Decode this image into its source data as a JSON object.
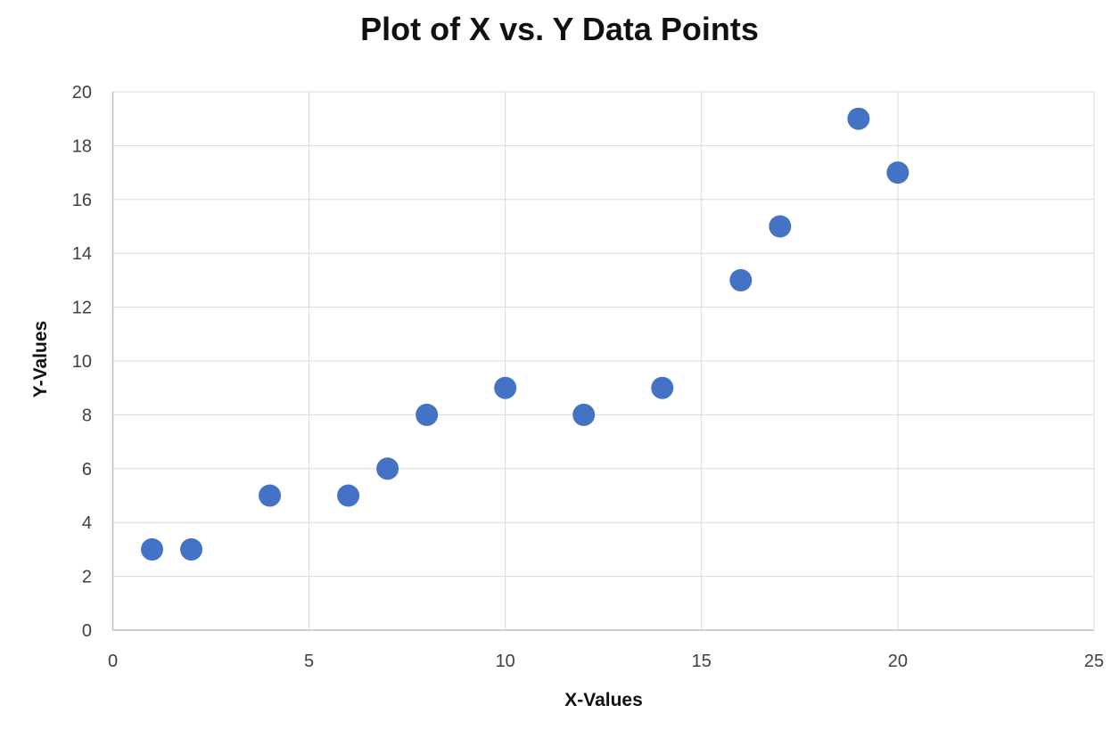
{
  "chart_data": {
    "type": "scatter",
    "title": "Plot of X vs. Y Data Points",
    "xlabel": "X-Values",
    "ylabel": "Y-Values",
    "xlim": [
      0,
      25
    ],
    "ylim": [
      0,
      20
    ],
    "x_ticks": [
      0,
      5,
      10,
      15,
      20,
      25
    ],
    "y_ticks": [
      0,
      2,
      4,
      6,
      8,
      10,
      12,
      14,
      16,
      18,
      20
    ],
    "grid": true,
    "legend": "none",
    "points": [
      [
        1,
        3
      ],
      [
        2,
        3
      ],
      [
        4,
        5
      ],
      [
        6,
        5
      ],
      [
        7,
        6
      ],
      [
        8,
        8
      ],
      [
        10,
        9
      ],
      [
        12,
        8
      ],
      [
        14,
        9
      ],
      [
        16,
        13
      ],
      [
        17,
        15
      ],
      [
        19,
        19
      ],
      [
        20,
        17
      ]
    ],
    "marker_color": "#4472C4",
    "marker_radius": 12.5,
    "gridline_color": "#D9D9D9",
    "axis_line_color": "#BFBFBF",
    "tick_label_color": "#404040",
    "tick_font_size": 20,
    "background_color": "#FFFFFF"
  }
}
